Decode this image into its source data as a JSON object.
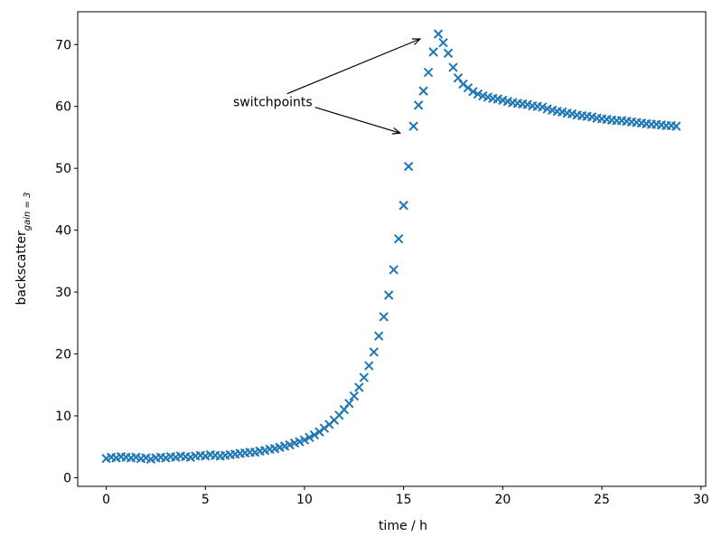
{
  "chart_data": {
    "type": "scatter",
    "xlabel": "time / h",
    "ylabel": "backscatter",
    "ylabel_sub": "gain = 3",
    "color": "#1f77b4",
    "marker": "x",
    "xlim": [
      -1.44,
      30.24
    ],
    "xticks": [
      0,
      5,
      10,
      15,
      20,
      25,
      30
    ],
    "ylim": [
      -1.4,
      75.3
    ],
    "yticks": [
      0,
      10,
      20,
      30,
      40,
      50,
      60,
      70
    ],
    "annotation": {
      "text": "switchpoints",
      "xytext": [
        6.4,
        60
      ],
      "xy": [
        [
          15.83,
          70.9
        ],
        [
          14.82,
          55.7
        ]
      ]
    },
    "x": [
      0,
      0.25,
      0.5,
      0.75,
      1,
      1.25,
      1.5,
      1.75,
      2,
      2.25,
      2.5,
      2.75,
      3,
      3.25,
      3.5,
      3.75,
      4,
      4.25,
      4.5,
      4.75,
      5,
      5.25,
      5.5,
      5.75,
      6,
      6.25,
      6.5,
      6.75,
      7,
      7.25,
      7.5,
      7.75,
      8,
      8.25,
      8.5,
      8.75,
      9,
      9.25,
      9.5,
      9.75,
      10,
      10.25,
      10.5,
      10.75,
      11,
      11.25,
      11.5,
      11.75,
      12,
      12.25,
      12.5,
      12.75,
      13,
      13.25,
      13.5,
      13.75,
      14,
      14.25,
      14.5,
      14.75,
      15,
      15.25,
      15.5,
      15.75,
      16,
      16.25,
      16.5,
      16.75,
      17,
      17.25,
      17.5,
      17.75,
      18,
      18.25,
      18.5,
      18.75,
      19,
      19.25,
      19.5,
      19.75,
      20,
      20.25,
      20.5,
      20.75,
      21,
      21.25,
      21.5,
      21.75,
      22,
      22.25,
      22.5,
      22.75,
      23,
      23.25,
      23.5,
      23.75,
      24,
      24.25,
      24.5,
      24.75,
      25,
      25.25,
      25.5,
      25.75,
      26,
      26.25,
      26.5,
      26.75,
      27,
      27.25,
      27.5,
      27.75,
      28,
      28.25,
      28.5,
      28.75
    ],
    "values": [
      3.1,
      3.3,
      3.2,
      3.4,
      3.3,
      3.2,
      3.3,
      3.1,
      3.2,
      3.0,
      3.2,
      3.3,
      3.2,
      3.4,
      3.3,
      3.5,
      3.4,
      3.3,
      3.5,
      3.6,
      3.5,
      3.7,
      3.6,
      3.5,
      3.6,
      3.7,
      3.8,
      3.9,
      4.0,
      4.1,
      4.1,
      4.3,
      4.4,
      4.6,
      4.7,
      4.9,
      5.1,
      5.3,
      5.6,
      5.8,
      6.1,
      6.5,
      6.9,
      7.4,
      8.0,
      8.6,
      9.3,
      10.1,
      11.0,
      12.0,
      13.2,
      14.6,
      16.2,
      18.1,
      20.3,
      22.9,
      26.0,
      29.5,
      33.6,
      38.6,
      44.0,
      50.3,
      56.8,
      60.2,
      62.5,
      65.5,
      68.8,
      71.7,
      70.3,
      68.6,
      66.3,
      64.6,
      63.6,
      63.0,
      62.4,
      62.0,
      61.7,
      61.5,
      61.3,
      61.2,
      61.0,
      60.8,
      60.6,
      60.5,
      60.4,
      60.3,
      60.1,
      60.0,
      59.9,
      59.6,
      59.4,
      59.2,
      59.1,
      58.9,
      58.8,
      58.6,
      58.5,
      58.4,
      58.3,
      58.1,
      58.0,
      57.9,
      57.8,
      57.7,
      57.7,
      57.6,
      57.5,
      57.4,
      57.3,
      57.2,
      57.1,
      57.1,
      57.0,
      56.9,
      56.9,
      56.8
    ]
  }
}
